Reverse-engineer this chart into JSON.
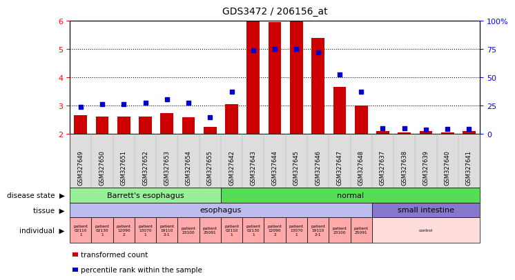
{
  "title": "GDS3472 / 206156_at",
  "samples": [
    "GSM327649",
    "GSM327650",
    "GSM327651",
    "GSM327652",
    "GSM327653",
    "GSM327654",
    "GSM327655",
    "GSM327642",
    "GSM327643",
    "GSM327644",
    "GSM327645",
    "GSM327646",
    "GSM327647",
    "GSM327648",
    "GSM327637",
    "GSM327638",
    "GSM327639",
    "GSM327640",
    "GSM327641"
  ],
  "bar_values": [
    2.65,
    2.6,
    2.6,
    2.6,
    2.72,
    2.58,
    2.25,
    3.05,
    6.0,
    5.95,
    6.0,
    5.4,
    3.65,
    3.0,
    2.1,
    2.05,
    2.1,
    2.05,
    2.1
  ],
  "dot_values": [
    2.95,
    3.05,
    3.05,
    3.1,
    3.22,
    3.1,
    2.58,
    3.5,
    4.95,
    5.0,
    5.0,
    4.88,
    4.1,
    3.5,
    2.2,
    2.2,
    2.15,
    2.18,
    2.18
  ],
  "ylim": [
    2.0,
    6.0
  ],
  "yticks_left": [
    2,
    3,
    4,
    5,
    6
  ],
  "yticks_right": [
    0,
    25,
    50,
    75,
    100
  ],
  "bar_color": "#cc0000",
  "dot_color": "#0000cc",
  "plot_bg": "#ffffff",
  "xtick_bg": "#dddddd",
  "disease_state_rows": [
    {
      "label": "Barrett's esophagus",
      "start": 0,
      "end": 7,
      "color": "#99ee99"
    },
    {
      "label": "normal",
      "start": 7,
      "end": 19,
      "color": "#55dd55"
    }
  ],
  "tissue_rows": [
    {
      "label": "esophagus",
      "start": 0,
      "end": 14,
      "color": "#bbbbee"
    },
    {
      "label": "small intestine",
      "start": 14,
      "end": 19,
      "color": "#8877cc"
    }
  ],
  "individual_rows": [
    {
      "label": "patient\n02110\n1",
      "start": 0,
      "end": 1,
      "color": "#ffaaaa"
    },
    {
      "label": "patient\n02130\n1",
      "start": 1,
      "end": 2,
      "color": "#ffaaaa"
    },
    {
      "label": "patient\n12090\n2",
      "start": 2,
      "end": 3,
      "color": "#ffaaaa"
    },
    {
      "label": "patient\n13070\n1",
      "start": 3,
      "end": 4,
      "color": "#ffaaaa"
    },
    {
      "label": "patient\n19110\n2-1",
      "start": 4,
      "end": 5,
      "color": "#ffaaaa"
    },
    {
      "label": "patient\n23100",
      "start": 5,
      "end": 6,
      "color": "#ffaaaa"
    },
    {
      "label": "patient\n25091",
      "start": 6,
      "end": 7,
      "color": "#ffaaaa"
    },
    {
      "label": "patient\n02110\n1",
      "start": 7,
      "end": 8,
      "color": "#ffaaaa"
    },
    {
      "label": "patient\n02130\n1",
      "start": 8,
      "end": 9,
      "color": "#ffaaaa"
    },
    {
      "label": "patient\n12090\n2",
      "start": 9,
      "end": 10,
      "color": "#ffaaaa"
    },
    {
      "label": "patient\n13070\n1",
      "start": 10,
      "end": 11,
      "color": "#ffaaaa"
    },
    {
      "label": "patient\n19110\n2-1",
      "start": 11,
      "end": 12,
      "color": "#ffaaaa"
    },
    {
      "label": "patient\n23100",
      "start": 12,
      "end": 13,
      "color": "#ffaaaa"
    },
    {
      "label": "patient\n25091",
      "start": 13,
      "end": 14,
      "color": "#ffaaaa"
    },
    {
      "label": "control",
      "start": 14,
      "end": 19,
      "color": "#ffdddd"
    }
  ],
  "row_labels": [
    "disease state",
    "tissue",
    "individual"
  ],
  "legend_items": [
    {
      "label": "transformed count",
      "color": "#cc0000"
    },
    {
      "label": "percentile rank within the sample",
      "color": "#0000cc"
    }
  ]
}
